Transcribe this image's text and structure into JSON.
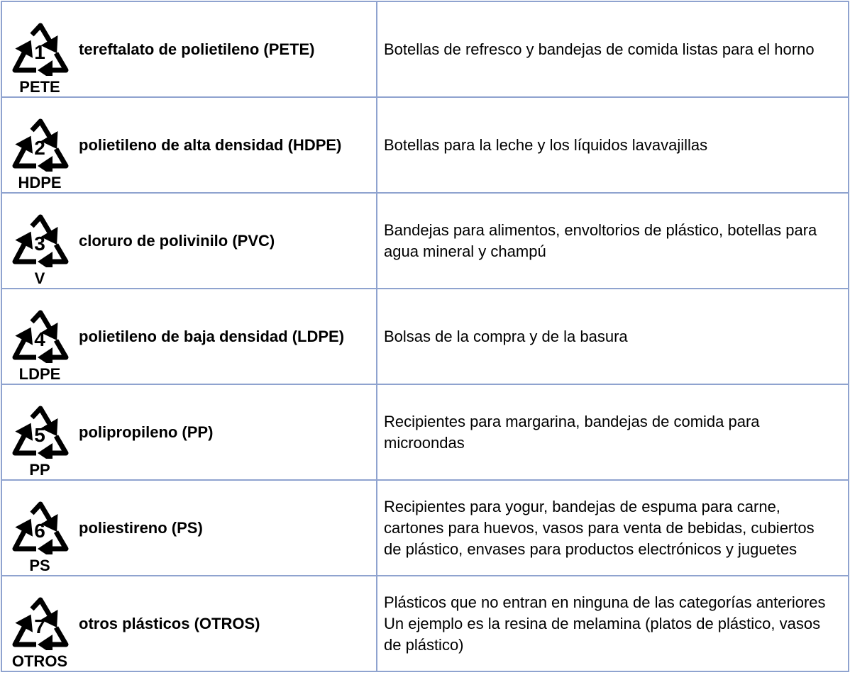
{
  "rows": [
    {
      "number": "1",
      "code": "PETE",
      "name": "tereftalato de polietileno (PETE)",
      "description": "Botellas de refresco y bandejas de comida listas para el horno"
    },
    {
      "number": "2",
      "code": "HDPE",
      "name": "polietileno de alta densidad (HDPE)",
      "description": "Botellas para la leche y los líquidos lavavajillas"
    },
    {
      "number": "3",
      "code": "V",
      "name": "cloruro de polivinilo (PVC)",
      "description": "Bandejas para alimentos, envoltorios de plástico, botellas para agua mineral y champú"
    },
    {
      "number": "4",
      "code": "LDPE",
      "name": "polietileno de baja densidad (LDPE)",
      "description": "Bolsas de la compra y de la basura"
    },
    {
      "number": "5",
      "code": "PP",
      "name": "polipropileno (PP)",
      "description": "Recipientes para margarina, bandejas de comida para microondas"
    },
    {
      "number": "6",
      "code": "PS",
      "name": "poliestireno (PS)",
      "description": "Recipientes para yogur, bandejas de espuma para carne, cartones para huevos, vasos para venta de bebidas, cubiertos de plástico, envases para productos electrónicos y juguetes"
    },
    {
      "number": "7",
      "code": "OTROS",
      "name": "otros plásticos (OTROS)",
      "description": "Plásticos que no entran en ninguna de las categorías anteriores Un ejemplo es la resina de melamina (platos de plástico, vasos de plástico)"
    }
  ],
  "colors": {
    "border": "#8fa3cf",
    "text": "#000000"
  },
  "icon": "recycling-triangle-icon"
}
